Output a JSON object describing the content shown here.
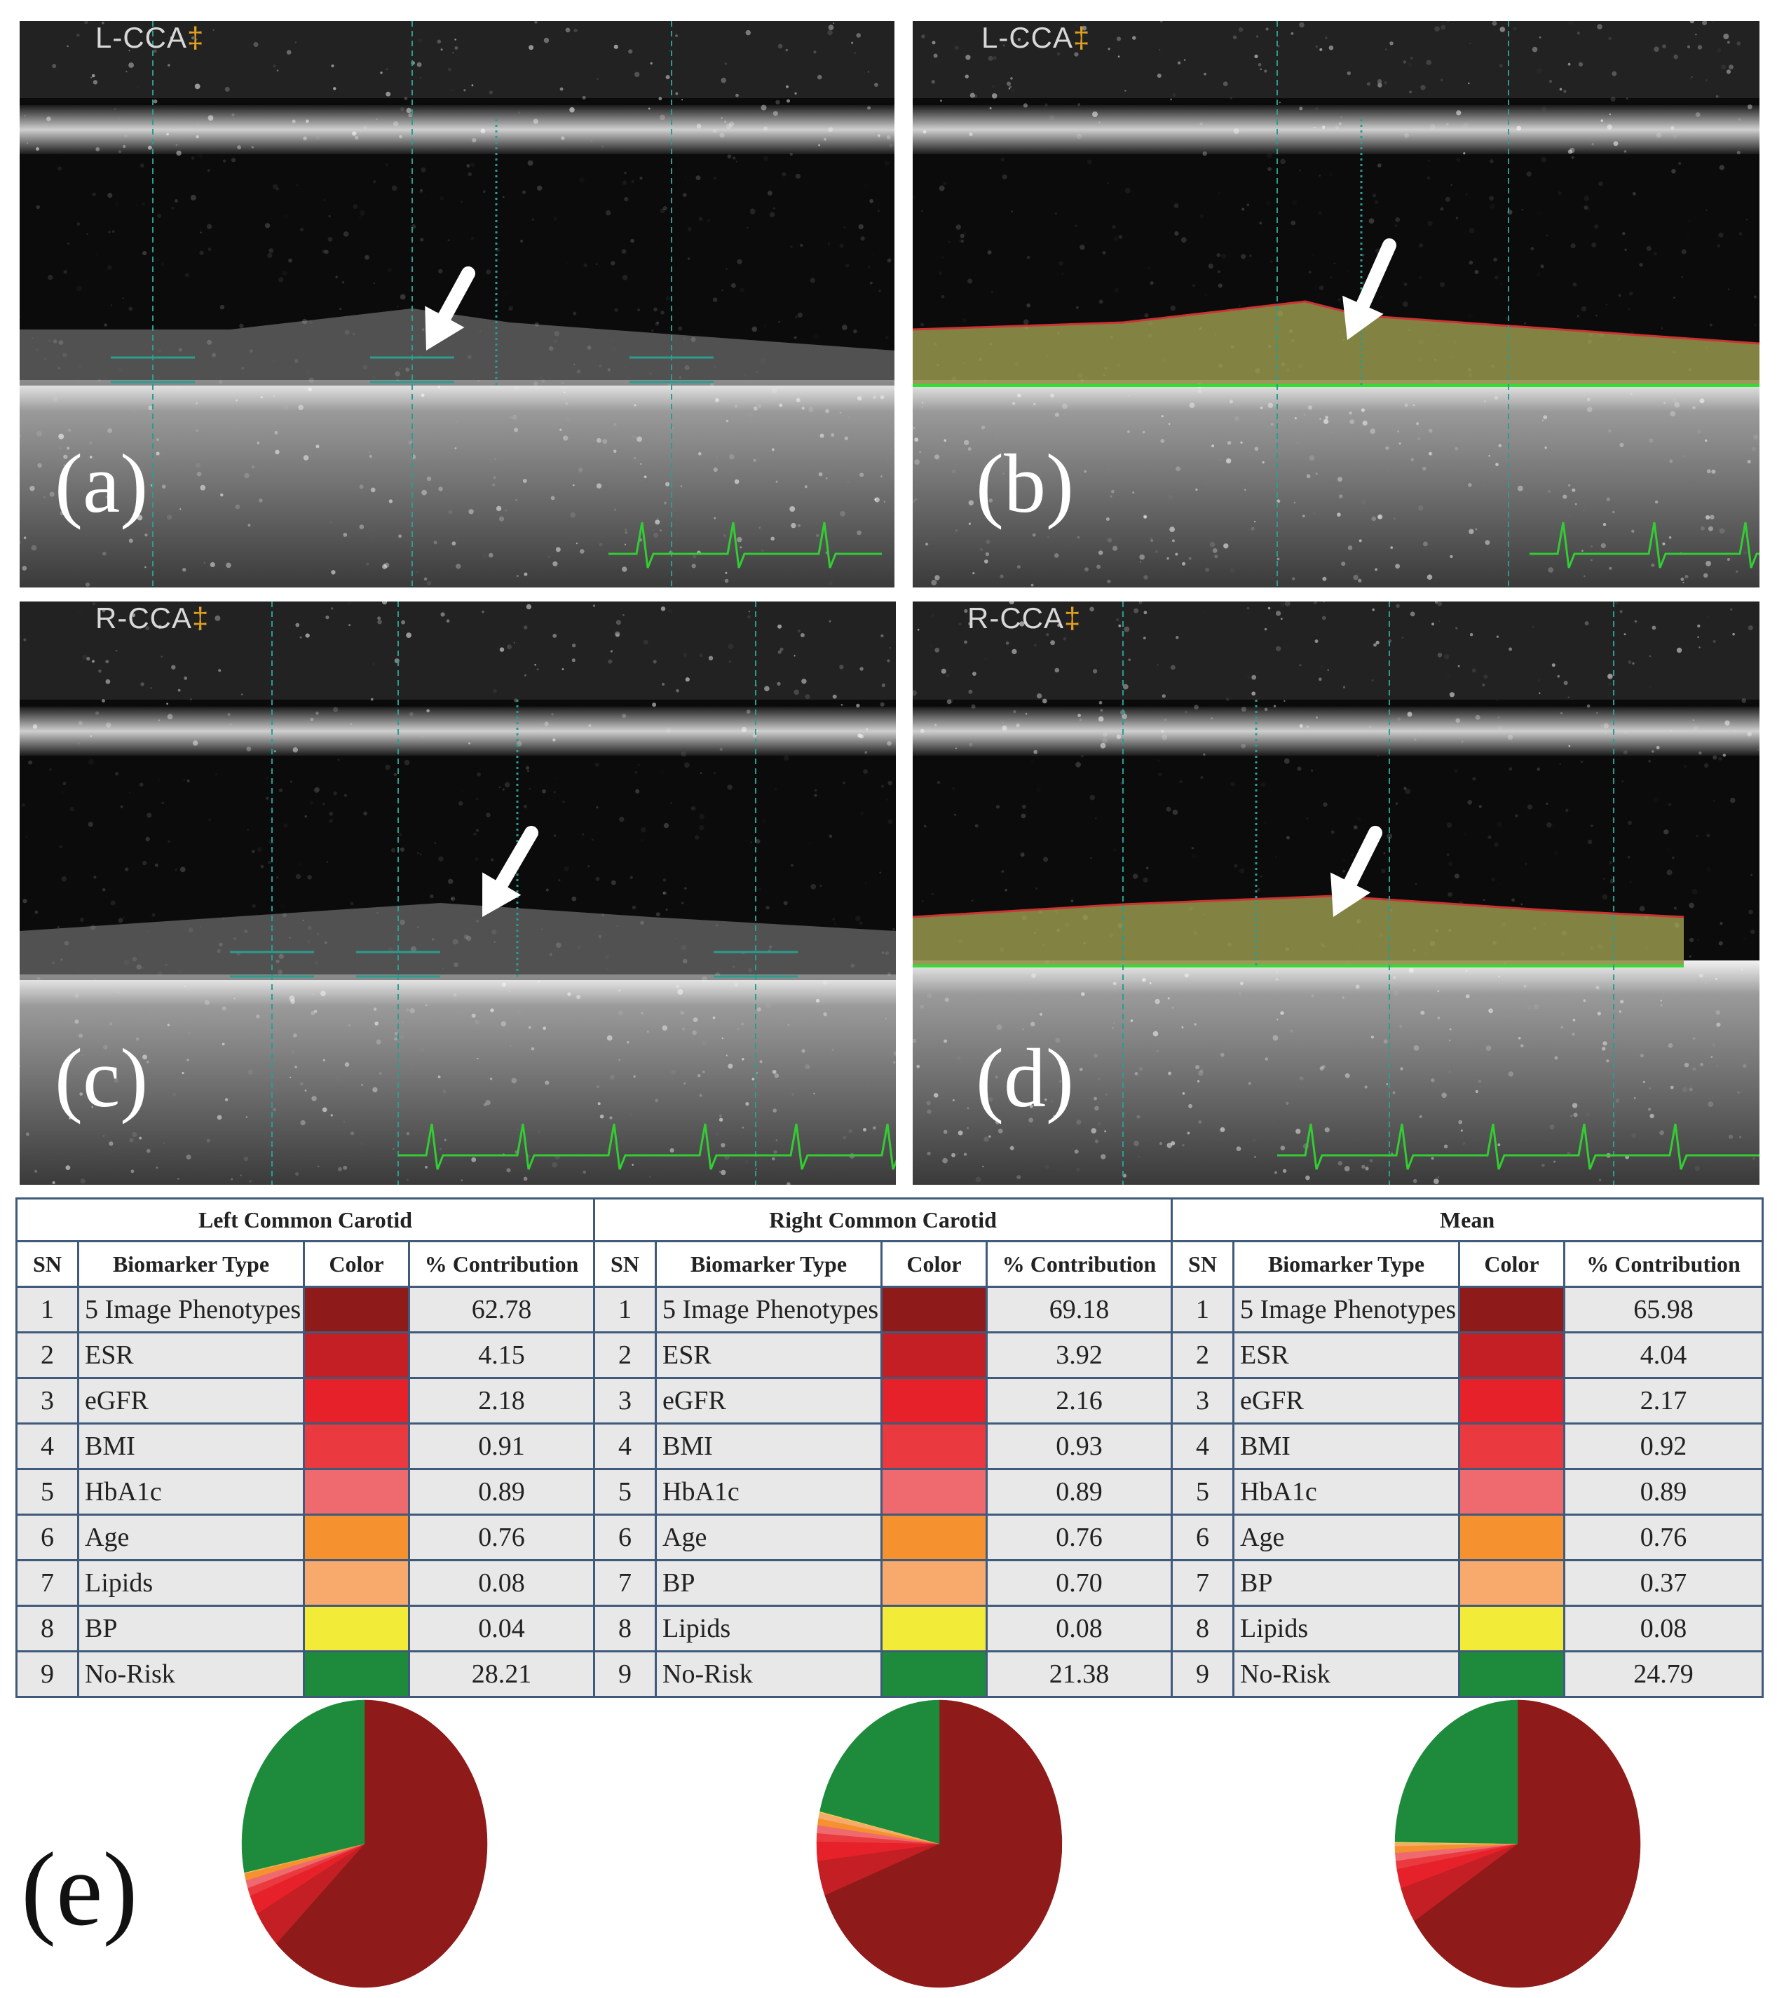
{
  "panels": [
    {
      "letter": "(a)",
      "vessel": "L-CCA",
      "segmented": false
    },
    {
      "letter": "(b)",
      "vessel": "L-CCA",
      "segmented": true
    },
    {
      "letter": "(c)",
      "vessel": "R-CCA",
      "segmented": false
    },
    {
      "letter": "(d)",
      "vessel": "R-CCA",
      "segmented": true
    }
  ],
  "figure_label": "(e)",
  "colors": {
    "ecg_trace": "#33cc33",
    "caliper": "#2a9d8f",
    "lumen_border": "#cc3333",
    "media_border": "#33dd33",
    "plaque_fill": "#a4a438"
  },
  "tables": [
    {
      "title": "Left Common Carotid",
      "headers": [
        "SN",
        "Biomarker Type",
        "Color",
        "% Contribution"
      ],
      "rows": [
        {
          "sn": "1",
          "type": "5 Image Phenotypes",
          "color": "#8e1a1a",
          "value": "62.78"
        },
        {
          "sn": "2",
          "type": "ESR",
          "color": "#c41f24",
          "value": "4.15"
        },
        {
          "sn": "3",
          "type": "eGFR",
          "color": "#e6212a",
          "value": "2.18"
        },
        {
          "sn": "4",
          "type": "BMI",
          "color": "#ea3a3f",
          "value": "0.91"
        },
        {
          "sn": "5",
          "type": "HbA1c",
          "color": "#ef6a6e",
          "value": "0.89"
        },
        {
          "sn": "6",
          "type": "Age",
          "color": "#f5922f",
          "value": "0.76"
        },
        {
          "sn": "7",
          "type": "Lipids",
          "color": "#f7aa6b",
          "value": "0.08"
        },
        {
          "sn": "8",
          "type": "BP",
          "color": "#f2ec38",
          "value": "0.04"
        },
        {
          "sn": "9",
          "type": "No-Risk",
          "color": "#1e8b3c",
          "value": "28.21"
        }
      ]
    },
    {
      "title": "Right Common Carotid",
      "headers": [
        "SN",
        "Biomarker Type",
        "Color",
        "% Contribution"
      ],
      "rows": [
        {
          "sn": "1",
          "type": "5 Image Phenotypes",
          "color": "#8e1a1a",
          "value": "69.18"
        },
        {
          "sn": "2",
          "type": "ESR",
          "color": "#c41f24",
          "value": "3.92"
        },
        {
          "sn": "3",
          "type": "eGFR",
          "color": "#e6212a",
          "value": "2.16"
        },
        {
          "sn": "4",
          "type": "BMI",
          "color": "#ea3a3f",
          "value": "0.93"
        },
        {
          "sn": "5",
          "type": "HbA1c",
          "color": "#ef6a6e",
          "value": "0.89"
        },
        {
          "sn": "6",
          "type": "Age",
          "color": "#f5922f",
          "value": "0.76"
        },
        {
          "sn": "7",
          "type": "BP",
          "color": "#f7aa6b",
          "value": "0.70"
        },
        {
          "sn": "8",
          "type": "Lipids",
          "color": "#f2ec38",
          "value": "0.08"
        },
        {
          "sn": "9",
          "type": "No-Risk",
          "color": "#1e8b3c",
          "value": "21.38"
        }
      ]
    },
    {
      "title": "Mean",
      "headers": [
        "SN",
        "Biomarker Type",
        "Color",
        "% Contribution"
      ],
      "rows": [
        {
          "sn": "1",
          "type": "5 Image Phenotypes",
          "color": "#8e1a1a",
          "value": "65.98"
        },
        {
          "sn": "2",
          "type": "ESR",
          "color": "#c41f24",
          "value": "4.04"
        },
        {
          "sn": "3",
          "type": "eGFR",
          "color": "#e6212a",
          "value": "2.17"
        },
        {
          "sn": "4",
          "type": "BMI",
          "color": "#ea3a3f",
          "value": "0.92"
        },
        {
          "sn": "5",
          "type": "HbA1c",
          "color": "#ef6a6e",
          "value": "0.89"
        },
        {
          "sn": "6",
          "type": "Age",
          "color": "#f5922f",
          "value": "0.76"
        },
        {
          "sn": "7",
          "type": "BP",
          "color": "#f7aa6b",
          "value": "0.37"
        },
        {
          "sn": "8",
          "type": "Lipids",
          "color": "#f2ec38",
          "value": "0.08"
        },
        {
          "sn": "9",
          "type": "No-Risk",
          "color": "#1e8b3c",
          "value": "24.79"
        }
      ]
    }
  ]
}
